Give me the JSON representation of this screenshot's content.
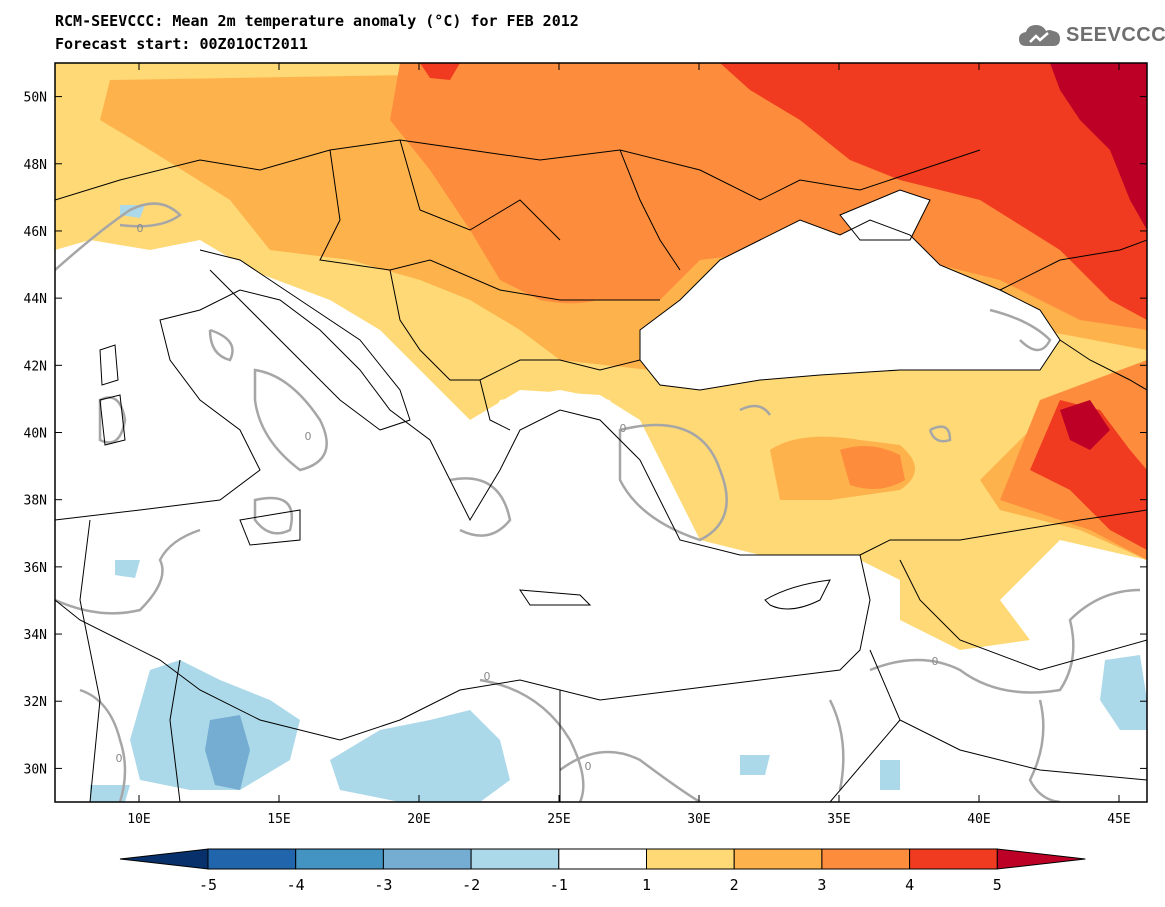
{
  "header": {
    "title_line1": "RCM-SEEVCCC: Mean 2m temperature anomaly (°C) for FEB 2012",
    "title_line2": "Forecast start: 00Z01OCT2011"
  },
  "logo": {
    "text": "SEEVCCC",
    "icon": "cloud-icon"
  },
  "map": {
    "lon_range": [
      7,
      46
    ],
    "lat_range": [
      29,
      51
    ],
    "lat_ticks": [
      "30N",
      "32N",
      "34N",
      "36N",
      "38N",
      "40N",
      "42N",
      "44N",
      "46N",
      "48N",
      "50N"
    ],
    "lon_ticks": [
      "10E",
      "15E",
      "20E",
      "25E",
      "30E",
      "35E",
      "40E",
      "45E"
    ],
    "contour_label": "0"
  },
  "colorbar": {
    "labels": [
      "-5",
      "-4",
      "-3",
      "-2",
      "-1",
      "1",
      "2",
      "3",
      "4",
      "5"
    ],
    "colors": [
      "#08306b",
      "#2166ac",
      "#4393c3",
      "#74add1",
      "#abd9e9",
      "#ffffff",
      "#fed976",
      "#feb24c",
      "#fd8d3c",
      "#f03b20",
      "#bd0026"
    ]
  }
}
